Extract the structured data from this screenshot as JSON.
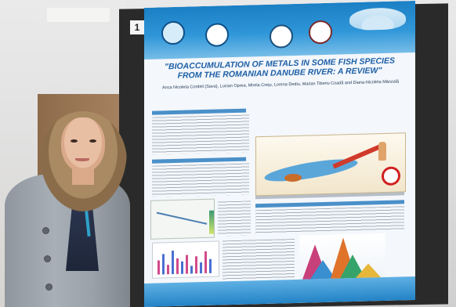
{
  "scene": {
    "board_number": "1",
    "poster": {
      "title": "\"BIOACCUMULATION OF METALS IN SOME FISH SPECIES FROM THE ROMANIAN DANUBE RIVER: A REVIEW\"",
      "authors": "Anca Nicoleta Cordeli (Sava), Lucian Oprea, Mirela Creţu, Lorena Dediu, Marian Tiberiu Coadă and Diana-Nicoleta Mânzală",
      "footer": ""
    }
  }
}
